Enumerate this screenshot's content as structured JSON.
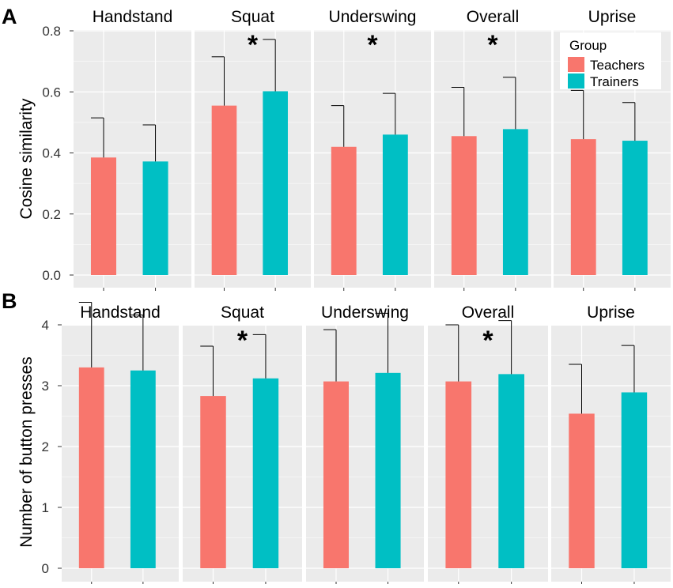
{
  "legend": {
    "title": "Group",
    "items": [
      {
        "label": "Teachers",
        "color": "#F8766D"
      },
      {
        "label": "Trainers",
        "color": "#00BFC4"
      }
    ]
  },
  "colors": {
    "panel_bg": "#EBEBEB",
    "grid": "#FFFFFF",
    "error_bar": "#000000",
    "text": "#000000"
  },
  "chart_data": [
    {
      "type": "bar",
      "panel_letter": "A",
      "ylabel": "Cosine similarity",
      "ylim": [
        0,
        0.8
      ],
      "yticks": [
        "0.0",
        "0.2",
        "0.4",
        "0.6",
        "0.8"
      ],
      "series_names": [
        "Teachers",
        "Trainers"
      ],
      "legend_position": "top-right inside last facet",
      "facets": [
        {
          "label": "Handstand",
          "values": [
            0.385,
            0.372
          ],
          "errors": [
            0.13,
            0.12
          ],
          "significance": ""
        },
        {
          "label": "Squat",
          "values": [
            0.555,
            0.602
          ],
          "errors": [
            0.16,
            0.17
          ],
          "significance": "*"
        },
        {
          "label": "Underswing",
          "values": [
            0.42,
            0.46
          ],
          "errors": [
            0.135,
            0.135
          ],
          "significance": "*"
        },
        {
          "label": "Overall",
          "values": [
            0.455,
            0.478
          ],
          "errors": [
            0.16,
            0.17
          ],
          "significance": "*"
        },
        {
          "label": "Uprise",
          "values": [
            0.445,
            0.44
          ],
          "errors": [
            0.16,
            0.125
          ],
          "significance": ""
        }
      ]
    },
    {
      "type": "bar",
      "panel_letter": "B",
      "ylabel": "Number of button presses",
      "ylim": [
        0,
        4.5
      ],
      "yticks": [
        "0",
        "1",
        "2",
        "3",
        "4"
      ],
      "series_names": [
        "Teachers",
        "Trainers"
      ],
      "legend_position": "none",
      "facets": [
        {
          "label": "Handstand",
          "values": [
            3.3,
            3.25
          ],
          "errors": [
            1.07,
            0.91
          ],
          "significance": ""
        },
        {
          "label": "Squat",
          "values": [
            2.83,
            3.12
          ],
          "errors": [
            0.82,
            0.72
          ],
          "significance": "*"
        },
        {
          "label": "Underswing",
          "values": [
            3.07,
            3.21
          ],
          "errors": [
            0.85,
            0.98
          ],
          "significance": ""
        },
        {
          "label": "Overall",
          "values": [
            3.07,
            3.19
          ],
          "errors": [
            0.93,
            0.88
          ],
          "significance": "*"
        },
        {
          "label": "Uprise",
          "values": [
            2.54,
            2.89
          ],
          "errors": [
            0.81,
            0.77
          ],
          "significance": ""
        }
      ]
    }
  ]
}
